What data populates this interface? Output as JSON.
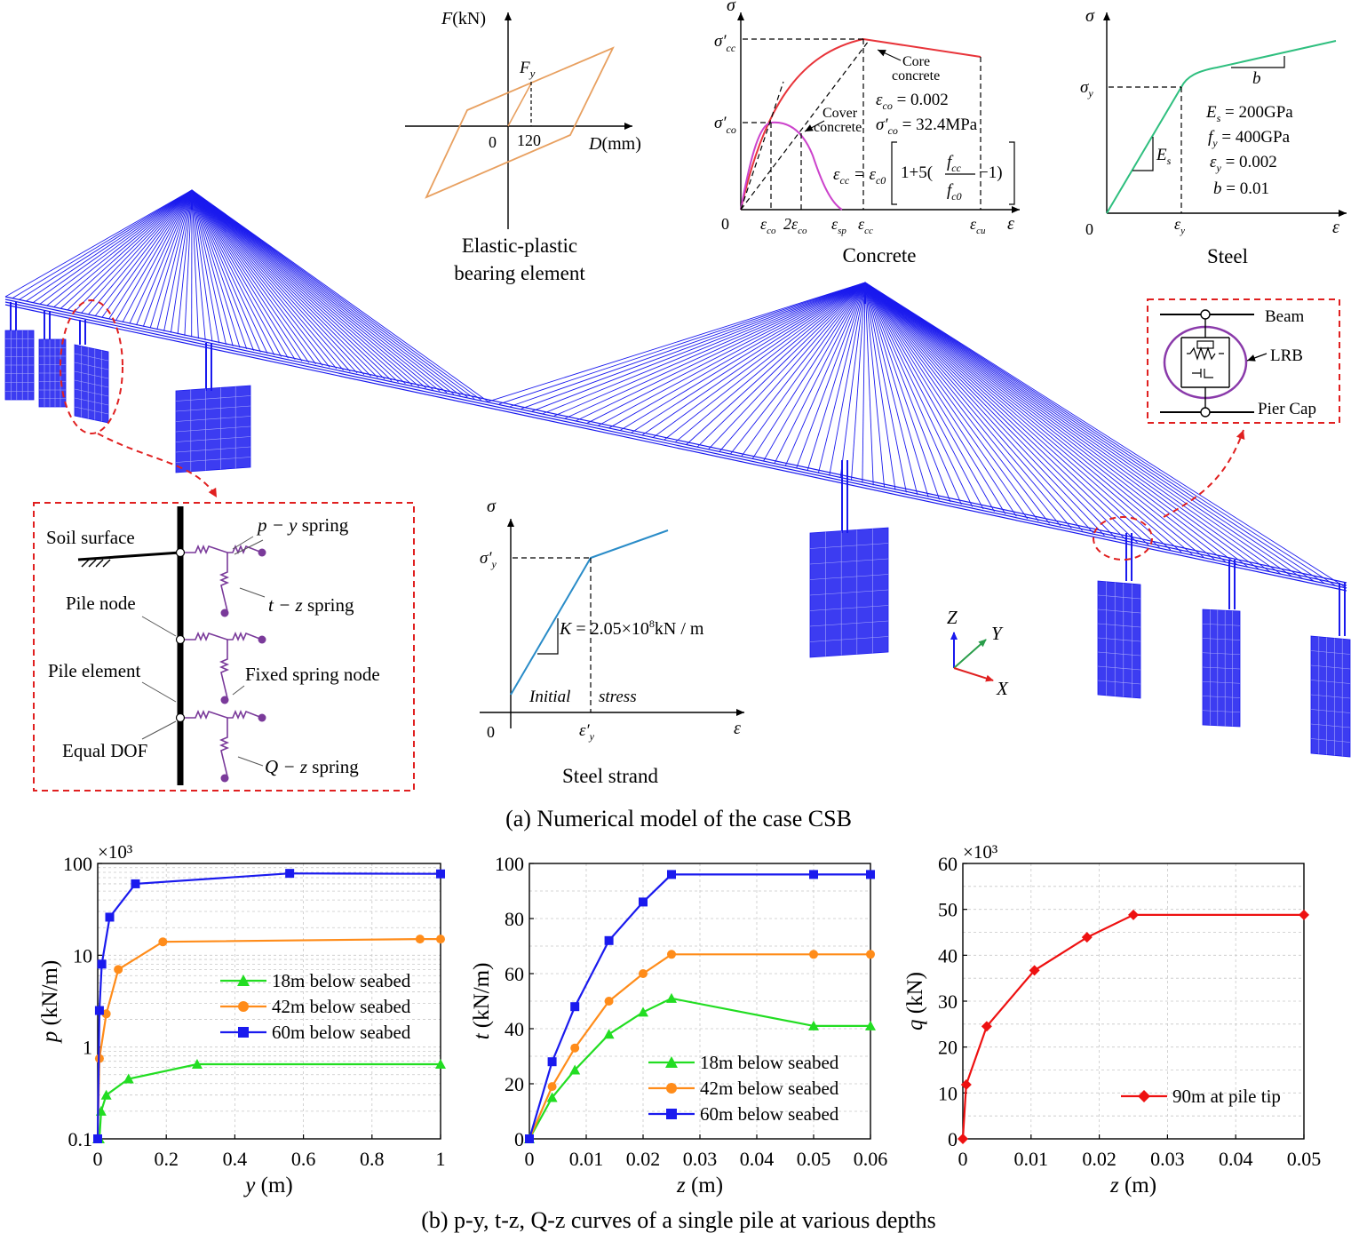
{
  "captions": {
    "a": "(a) Numerical model of the case CSB",
    "b": "(b) p-y, t-z, Q-z curves of a single pile at various depths"
  },
  "bearing_panel": {
    "title_line1": "Elastic-plastic",
    "title_line2": "bearing element",
    "y_axis": "F",
    "y_unit": "(kN)",
    "x_axis": "D",
    "x_unit": "(mm)",
    "fy_label": "F",
    "fy_sub": "y",
    "origin": "0",
    "tick": "120"
  },
  "concrete_panel": {
    "title": "Concrete",
    "sigma": "σ",
    "epsilon": "ε",
    "origin": "0",
    "sigma_cc": "σ′",
    "sigma_cc_sub": "cc",
    "sigma_co": "σ′",
    "sigma_co_sub": "co",
    "core_line1": "Core",
    "core_line2": "concrete",
    "cover_line1": "Cover",
    "cover_line2": "concrete",
    "eco_eq": "ε",
    "eco_sub": "co",
    "eco_val": " = 0.002",
    "sco_eq": "σ′",
    "sco_sub": "co",
    "sco_val": " = 32.4MPa",
    "ecc_formula_left": "ε",
    "ecc_formula_left_sub": "cc",
    "ecc_formula_eq": " = ε",
    "ecc_formula_eq_sub": "c0",
    "ecc_formula_mid": "1+5(",
    "ecc_formula_num": "f",
    "ecc_formula_num_sub": "cc",
    "ecc_formula_den": "f",
    "ecc_formula_den_sub": "c0",
    "ecc_formula_end": "−1)",
    "tick_eco": "ε",
    "tick_eco_sub": "co",
    "tick_2eco": "2ε",
    "tick_2eco_sub": "co",
    "tick_esp": "ε",
    "tick_esp_sub": "sp",
    "tick_ecc": "ε",
    "tick_ecc_sub": "cc",
    "tick_ecu": "ε",
    "tick_ecu_sub": "cu"
  },
  "steel_panel": {
    "title": "Steel",
    "sigma": "σ",
    "epsilon": "ε",
    "origin": "0",
    "sigma_y": "σ",
    "sigma_y_sub": "y",
    "eps_y": "ε",
    "eps_y_sub": "y",
    "b_label": "b",
    "es_label": "E",
    "es_sub": "s",
    "p1": "E",
    "p1_sub": "s",
    "p1_val": " = 200GPa",
    "p2": "f",
    "p2_sub": "y",
    "p2_val": " = 400GPa",
    "p3": "ε",
    "p3_sub": "y",
    "p3_val": " = 0.002",
    "p4": "b",
    "p4_val": " = 0.01"
  },
  "strand_panel": {
    "title": "Steel strand",
    "sigma": "σ",
    "epsilon": "ε",
    "origin": "0",
    "sigma_y": "σ′",
    "sigma_y_sub": "y",
    "eps_y": "ε′",
    "eps_y_sub": "y",
    "k_label": "K",
    "k_val": " = 2.05×10",
    "k_exp": "8",
    "k_unit": "kN / m",
    "initial": "Initial",
    "stress": "stress"
  },
  "spring_panel": {
    "soil_surface": "Soil surface",
    "pile_node": "Pile node",
    "pile_element": "Pile element",
    "equal_dof": "Equal DOF",
    "py": "p − y",
    "py_word": " spring",
    "tz": "t − z",
    "tz_word": " spring",
    "fixed": "Fixed spring node",
    "qz": "Q − z",
    "qz_word": " spring"
  },
  "lrb_panel": {
    "beam": "Beam",
    "lrb": "LRB",
    "pier_cap": "Pier Cap"
  },
  "axes_triad": {
    "z": "Z",
    "y": "Y",
    "x": "X"
  },
  "colors": {
    "model_blue": "#1a1aee",
    "callout_red": "#e02020",
    "series_green": "#22dd22",
    "series_orange": "#ff8c1a",
    "series_blue": "#1a1aee",
    "series_red": "#ee1111",
    "concrete_core": "#e8343a",
    "concrete_cover": "#cc44cc",
    "steel_green": "#2fbf7f",
    "strand_blue": "#2a8cc8",
    "bearing_orange": "#e8a060",
    "spring_purple": "#7a3a9a"
  },
  "chart_data": [
    {
      "type": "line",
      "id": "py",
      "multiplier": "×10³",
      "xlabel": "y (m)",
      "ylabel": "p (kN/m)",
      "yscale": "log",
      "xlim": [
        0,
        1
      ],
      "ylim": [
        0.1,
        100
      ],
      "xticks": [
        "0",
        "0.2",
        "0.4",
        "0.6",
        "0.8",
        "1"
      ],
      "yticks": [
        "0.1",
        "1",
        "10",
        "100"
      ],
      "grid": true,
      "legend_position": "center-right",
      "series": [
        {
          "name": "18m below seabed",
          "marker": "triangle",
          "x": [
            0,
            0.005,
            0.01,
            0.025,
            0.09,
            0.29,
            1.0
          ],
          "y": [
            0.1,
            0.1,
            0.2,
            0.3,
            0.45,
            0.65,
            0.65
          ]
        },
        {
          "name": "42m below seabed",
          "marker": "circle",
          "x": [
            0,
            0.005,
            0.025,
            0.06,
            0.19,
            0.94,
            1.0
          ],
          "y": [
            0.1,
            0.75,
            2.3,
            7,
            14,
            15,
            15
          ]
        },
        {
          "name": "60m below seabed",
          "marker": "square",
          "x": [
            0,
            0.005,
            0.012,
            0.035,
            0.11,
            0.56,
            1.0
          ],
          "y": [
            0.1,
            2.5,
            8,
            26,
            60,
            78,
            77
          ]
        }
      ]
    },
    {
      "type": "line",
      "id": "tz",
      "xlabel": "z (m)",
      "ylabel": "t (kN/m)",
      "xlim": [
        0,
        0.06
      ],
      "ylim": [
        0,
        100
      ],
      "xticks": [
        "0",
        "0.01",
        "0.02",
        "0.03",
        "0.04",
        "0.05",
        "0.06"
      ],
      "yticks": [
        "0",
        "20",
        "40",
        "60",
        "80",
        "100"
      ],
      "grid": true,
      "legend_position": "bottom-right",
      "series": [
        {
          "name": "18m below seabed",
          "marker": "triangle",
          "x": [
            0,
            0.004,
            0.008,
            0.014,
            0.02,
            0.025,
            0.05,
            0.06
          ],
          "y": [
            0,
            15,
            25,
            38,
            46,
            51,
            41,
            41
          ]
        },
        {
          "name": "42m below seabed",
          "marker": "circle",
          "x": [
            0,
            0.004,
            0.008,
            0.014,
            0.02,
            0.025,
            0.05,
            0.06
          ],
          "y": [
            0,
            19,
            33,
            50,
            60,
            67,
            67,
            67
          ]
        },
        {
          "name": "60m below seabed",
          "marker": "square",
          "x": [
            0,
            0.004,
            0.008,
            0.014,
            0.02,
            0.025,
            0.05,
            0.06
          ],
          "y": [
            0,
            28,
            48,
            72,
            86,
            96,
            96,
            96
          ]
        }
      ]
    },
    {
      "type": "line",
      "id": "qz",
      "multiplier": "×10³",
      "xlabel": "z (m)",
      "ylabel": "q (kN)",
      "xlim": [
        0,
        0.05
      ],
      "ylim": [
        0,
        60
      ],
      "xticks": [
        "0",
        "0.01",
        "0.02",
        "0.03",
        "0.04",
        "0.05"
      ],
      "yticks": [
        "0",
        "10",
        "20",
        "30",
        "40",
        "50",
        "60"
      ],
      "grid": true,
      "legend_position": "bottom-right",
      "series": [
        {
          "name": "90m at pile tip",
          "marker": "diamond",
          "x": [
            0,
            0.0005,
            0.0035,
            0.0105,
            0.0182,
            0.025,
            0.05
          ],
          "y": [
            0,
            11.8,
            24.5,
            36.7,
            43.9,
            48.8,
            48.8
          ]
        }
      ]
    }
  ]
}
